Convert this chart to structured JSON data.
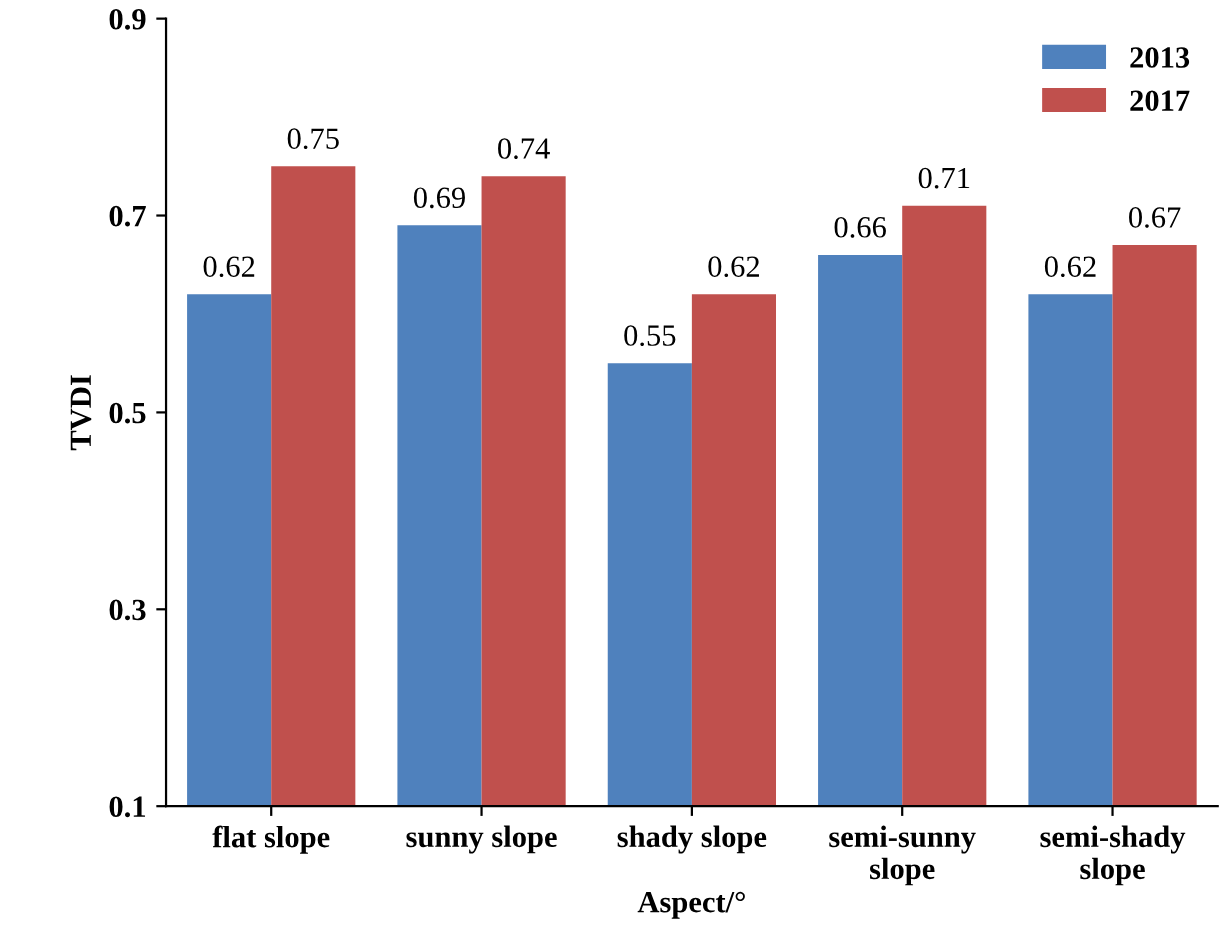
{
  "chart_data": {
    "type": "bar",
    "xlabel": "Aspect/°",
    "ylabel": "TVDI",
    "categories": [
      "flat slope",
      "sunny slope",
      "shady slope",
      "semi-sunny\nslope",
      "semi-shady\nslope"
    ],
    "series": [
      {
        "name": "2013",
        "color": "#4f81bd",
        "values": [
          0.62,
          0.69,
          0.55,
          0.66,
          0.62
        ]
      },
      {
        "name": "2017",
        "color": "#c0504d",
        "values": [
          0.75,
          0.74,
          0.62,
          0.71,
          0.67
        ]
      }
    ],
    "ylim": [
      0.1,
      0.9
    ],
    "yticks": [
      0.1,
      0.3,
      0.5,
      0.7,
      0.9
    ],
    "data_labels": true,
    "legend": "top right",
    "grid": false
  }
}
